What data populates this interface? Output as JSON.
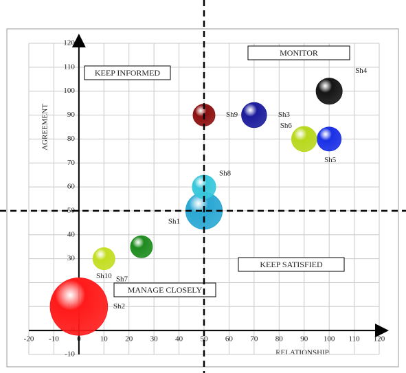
{
  "chart_data": {
    "type": "bubble",
    "x_label": "RELATIONSHIP",
    "y_label": "AGREEMENT",
    "xlim": [
      -20,
      120
    ],
    "ylim": [
      -10,
      120
    ],
    "xticks": [
      -20,
      -10,
      0,
      10,
      20,
      30,
      40,
      50,
      60,
      70,
      80,
      90,
      100,
      110,
      120
    ],
    "yticks": [
      -10,
      0,
      10,
      20,
      30,
      40,
      50,
      60,
      70,
      80,
      90,
      100,
      110,
      120
    ],
    "grid": true,
    "quadrant_lines": {
      "x": 50,
      "y": 50
    },
    "annotations": [
      "KEEP INFORMED",
      "MONITOR",
      "KEEP SATISFIED",
      "MANAGE CLOSELY"
    ],
    "points": [
      {
        "name": "Sh1",
        "x": 50,
        "y": 50,
        "size": 7,
        "color": "#2aa8d4"
      },
      {
        "name": "Sh2",
        "x": 0,
        "y": 10,
        "size": 11,
        "color": "#ff1a1a"
      },
      {
        "name": "Sh3",
        "x": 70,
        "y": 90,
        "size": 4.8,
        "color": "#1c1c9c"
      },
      {
        "name": "Sh4",
        "x": 100,
        "y": 100,
        "size": 5,
        "color": "#151515"
      },
      {
        "name": "Sh5",
        "x": 100,
        "y": 80,
        "size": 4.6,
        "color": "#1a30e6"
      },
      {
        "name": "Sh6",
        "x": 90,
        "y": 80,
        "size": 4.8,
        "color": "#b8d81c"
      },
      {
        "name": "Sh7",
        "x": 25,
        "y": 35,
        "size": 4.2,
        "color": "#1f8c1f"
      },
      {
        "name": "Sh8",
        "x": 50,
        "y": 60,
        "size": 4.5,
        "color": "#38c8dc"
      },
      {
        "name": "Sh9",
        "x": 50,
        "y": 90,
        "size": 4.2,
        "color": "#8c1010"
      },
      {
        "name": "Sh10",
        "x": 10,
        "y": 30,
        "size": 4.2,
        "color": "#c4de22"
      }
    ]
  }
}
